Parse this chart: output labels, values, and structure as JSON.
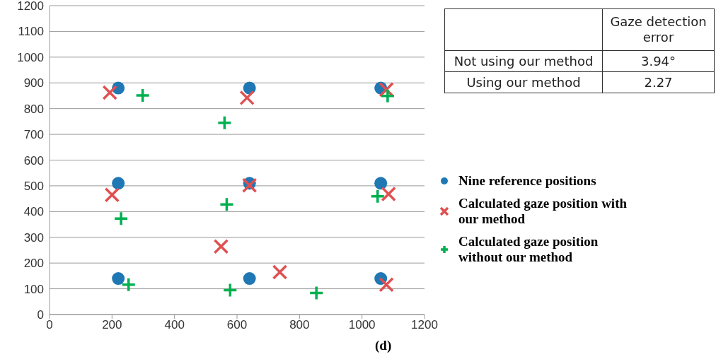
{
  "chart_data": [
    {
      "type": "scatter",
      "xlim": [
        0,
        1200
      ],
      "xticks": [
        0,
        200,
        400,
        600,
        800,
        1000,
        1200
      ],
      "ylim": [
        0,
        1200
      ],
      "yticks": [
        0,
        100,
        200,
        300,
        400,
        500,
        600,
        700,
        800,
        900,
        1000,
        1100,
        1200
      ],
      "grid": "y",
      "legend": "right",
      "annotations": [
        "(d)"
      ],
      "series": [
        {
          "name": "Nine reference positions",
          "color": "#1f77b4",
          "marker": "circle",
          "x": [
            220,
            640,
            1060,
            220,
            640,
            1060,
            220,
            640,
            1060
          ],
          "values": [
            880,
            880,
            880,
            510,
            510,
            510,
            140,
            140,
            140
          ]
        },
        {
          "name": "Calculated gaze position with our method",
          "color": "#e05050",
          "marker": "cross",
          "x": [
            193,
            632,
            1078,
            200,
            640,
            1085,
            549,
            737,
            1078
          ],
          "values": [
            862,
            842,
            874,
            465,
            502,
            468,
            264,
            165,
            116
          ]
        },
        {
          "name": "Calculated gaze position without our method",
          "color": "#00b050",
          "marker": "plus",
          "x": [
            298,
            560,
            1082,
            229,
            567,
            1050,
            253,
            578,
            854
          ],
          "values": [
            851,
            745,
            849,
            373,
            428,
            459,
            116,
            95,
            84
          ]
        }
      ]
    },
    {
      "type": "other",
      "annotations": [
        "Gaze detection error",
        "Not using our method",
        "3.94°",
        "Using our method",
        "2.27"
      ]
    }
  ]
}
